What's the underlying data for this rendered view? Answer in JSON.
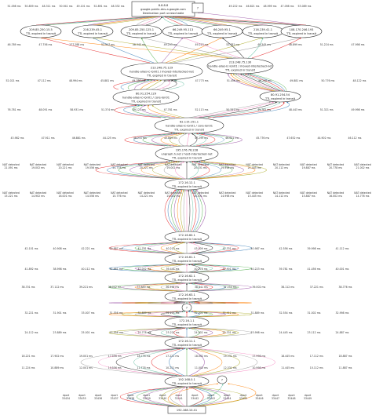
{
  "graph": {
    "type": "directed-graph",
    "edge_colors": [
      "#e41a1c",
      "#377eb8",
      "#4daf4a",
      "#984ea3",
      "#ff7f00",
      "#a6a619",
      "#999999",
      "#f781bf",
      "#1a1a1a",
      "#66c2a5"
    ],
    "top_node": {
      "id": "8.8.8.8",
      "sub1": "google-public-dns-a.google.com",
      "sub2": "Destination port unreachable"
    },
    "question_node": {
      "id": "?"
    },
    "row1_hosts": [
      {
        "id": "209.85.250.15.5",
        "sub1": "TTL expired in transit"
      },
      {
        "id": "216.239.45.1",
        "sub1": "TTL expired in transit"
      },
      {
        "id": "209.85.250.125.1",
        "sub1": "TTL expired in transit"
      },
      {
        "id": "66.249.95.113",
        "sub1": "TTL expired in transit"
      },
      {
        "id": "66.249.95.1",
        "sub1": "TTL expired in transit"
      },
      {
        "id": "216.239.41.1",
        "sub1": "TTL expired in transit"
      },
      {
        "id": "108.170.246.193",
        "sub1": "TTL expired in transit"
      }
    ],
    "isp_nodes": [
      {
        "id": "213.248.75.129",
        "sub1": "handle-alias-ic-lon01 / moved-interlocked-net",
        "sub2": "TTL expired in transit"
      },
      {
        "id": "213.248.75.130",
        "sub1": "handle-alias-ic-lon01 / moved-interlocked-net",
        "sub2": "TTL expired in transit"
      },
      {
        "id": "80.91.254.129",
        "sub1": "handle-alias-ic-lon01 / core-lon01",
        "sub2": "TTL expired in transit"
      },
      {
        "id": "80.91.254.54",
        "sub1": "TTL expired in transit"
      },
      {
        "id": "62.115.151.1",
        "sub1": "handle-alias-ic-lon01 / core-lon01",
        "sub2": "TTL expired in transit"
      },
      {
        "id": "195.176.76.228",
        "sub1": "ungraph.h.net / host-interlocked-net",
        "sub2": "TTL expired in transit"
      }
    ],
    "mid_nodes": [
      {
        "id": "172.16.12.1",
        "sub1": "TTL expired in transit"
      },
      {
        "id": "172.16.60.1",
        "sub1": "TTL expired in transit"
      },
      {
        "id": "172.16.61.1",
        "sub1": "TTL expired in transit"
      },
      {
        "id": "172.16.62.1",
        "sub1": "TTL expired in transit"
      },
      {
        "id": "172.16.63.1",
        "sub1": "TTL expired in transit"
      },
      {
        "id": "172.16.1.1",
        "sub1": "TTL expired in transit"
      },
      {
        "id": "172.16.11.1",
        "sub1": "TTL expired in transit"
      },
      {
        "id": "192.168.0.1",
        "sub1": "TTL expired in transit"
      }
    ],
    "source_node": {
      "id": "192.168.10.41"
    },
    "rtt_unit": "ms",
    "nat_label": "NAT detected",
    "dport_label": "dport",
    "rtt_rows": [
      [
        "51.098 ms",
        "50.859 ms",
        "48.311 ms",
        "50.941 ms",
        "49.101 ms",
        "52.891 ms",
        "48.332 ms",
        "49.222 ms",
        "46.821 ms",
        "48.999 ms",
        "47.098 ms",
        "53.089 ms"
      ],
      [
        "46.789 ms",
        "47.756 ms",
        "177.288 ms",
        "52.917 ms",
        "48.345 ms",
        "49.203 ms",
        "49.223 ms",
        "52.781 ms",
        "49.345 ms",
        "48.899 ms",
        "51.224 ms",
        "47.998 ms"
      ],
      [
        "52.021 ms",
        "47.112 ms",
        "48.994 ms",
        "45.881 ms",
        "49.786 ms",
        "50.091 ms",
        "47.773 ms",
        "51.456 ms",
        "46.298 ms",
        "49.881 ms",
        "50.776 ms",
        "48.122 ms"
      ],
      [
        "76.781 ms",
        "48.091 ms",
        "58.931 ms",
        "51.374 ms",
        "49.121 ms",
        "47.781 ms",
        "52.113 ms",
        "50.221 ms",
        "49.782 ms",
        "48.443 ms",
        "51.321 ms",
        "49.998 ms"
      ],
      [
        "43.982 ms",
        "47.911 ms",
        "46.881 ms",
        "44.125 ms",
        "48.211 ms",
        "45.889 ms",
        "47.299 ms",
        "46.001 ms",
        "45.776 ms",
        "47.652 ms",
        "44.902 ms",
        "46.112 ms"
      ],
      [
        "42.101 ms",
        "40.908 ms",
        "42.221 ms",
        "39.887 ms",
        "41.781 ms",
        "40.213 ms",
        "43.009 ms",
        "41.331 ms",
        "40.987 ms",
        "42.556 ms",
        "39.998 ms",
        "41.112 ms"
      ],
      [
        "41.892 ms",
        "38.998 ms",
        "40.112 ms",
        "42.661 ms",
        "41.002 ms",
        "39.441 ms",
        "40.778 ms",
        "41.901 ms",
        "40.223 ms",
        "39.781 ms",
        "41.456 ms",
        "40.001 ms"
      ],
      [
        "38.701 ms",
        "37.112 ms",
        "39.221 ms",
        "38.002 ms",
        "37.889 ms",
        "36.998 ms",
        "38.441 ms",
        "37.554 ms",
        "39.002 ms",
        "38.112 ms",
        "37.221 ms",
        "38.776 ms"
      ],
      [
        "32.221 ms",
        "31.901 ms",
        "33.007 ms",
        "31.556 ms",
        "32.889 ms",
        "31.221 ms",
        "32.001 ms",
        "33.412 ms",
        "31.889 ms",
        "32.554 ms",
        "31.002 ms",
        "32.998 ms"
      ],
      [
        "24.112 ms",
        "23.889 ms",
        "25.001 ms",
        "23.556 ms",
        "24.778 ms",
        "23.221 ms",
        "24.002 ms",
        "25.331 ms",
        "23.998 ms",
        "24.445 ms",
        "23.112 ms",
        "24.887 ms"
      ],
      [
        "18.221 ms",
        "17.902 ms",
        "19.001 ms",
        "17.556 ms",
        "18.776 ms",
        "17.221 ms",
        "18.002 ms",
        "19.331 ms",
        "17.998 ms",
        "18.445 ms",
        "17.112 ms",
        "18.887 ms"
      ],
      [
        "11.224 ms",
        "10.889 ms",
        "12.001 ms",
        "10.556 ms",
        "11.778 ms",
        "10.221 ms",
        "11.002 ms",
        "12.331 ms",
        "10.998 ms",
        "11.445 ms",
        "10.112 ms",
        "11.887 ms"
      ],
      [
        "7.112 ms",
        "6.889 ms",
        "8.001 ms",
        "6.556 ms",
        "7.778 ms",
        "6.221 ms",
        "7.002 ms",
        "8.331 ms",
        "6.998 ms",
        "7.445 ms",
        "6.112 ms",
        "7.887 ms"
      ]
    ],
    "nat_rows": [
      [
        "21.091 ms",
        "19.002 ms",
        "20.221 ms",
        "19.556 ms",
        "21.778 ms",
        "20.221 ms",
        "19.002 ms",
        "20.331 ms",
        "19.998 ms",
        "21.445 ms",
        "20.112 ms",
        "19.887 ms",
        "20.778 ms",
        "21.002 ms"
      ],
      [
        "15.221 ms",
        "14.902 ms",
        "16.001 ms",
        "14.556 ms",
        "15.776 ms",
        "14.221 ms",
        "15.002 ms",
        "16.331 ms",
        "14.998 ms",
        "15.445 ms",
        "14.112 ms",
        "15.887 ms",
        "16.002 ms",
        "14.776 ms"
      ]
    ],
    "dport_values": [
      "33434",
      "33435",
      "33436",
      "33437",
      "33438",
      "33439",
      "33440",
      "33441",
      "33442",
      "33443",
      "33444",
      "33445",
      "33446",
      "33447",
      "33448",
      "33449"
    ]
  }
}
